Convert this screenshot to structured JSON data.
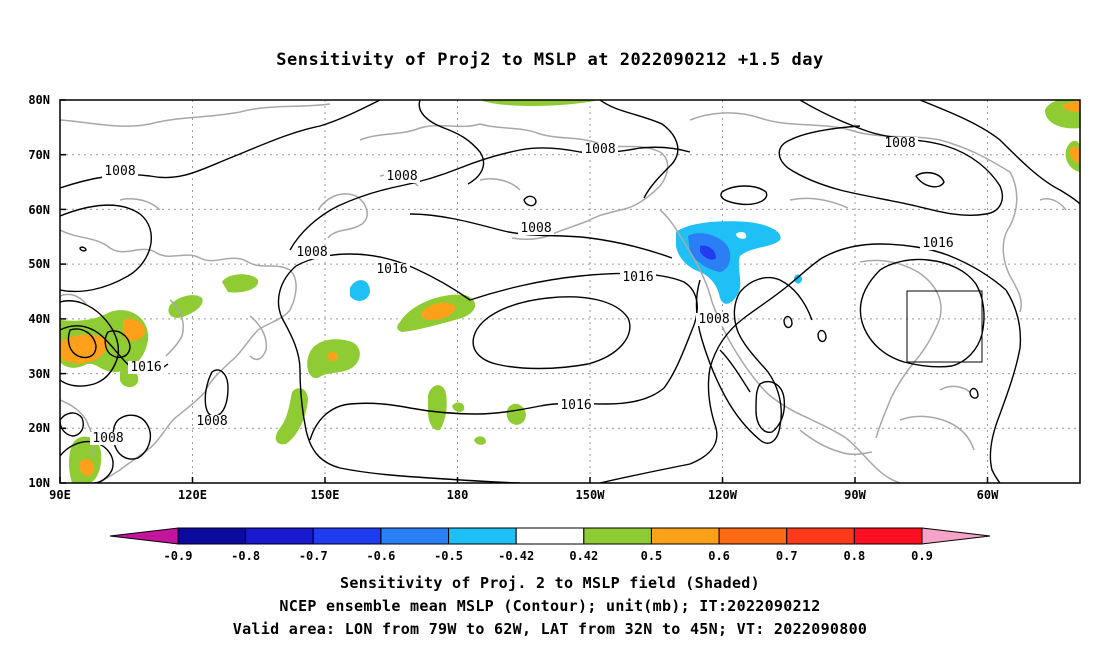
{
  "title": "Sensitivity of Proj2 to MSLP at 2022090212 +1.5 day",
  "lat_labels": [
    "80N",
    "70N",
    "60N",
    "50N",
    "40N",
    "30N",
    "20N",
    "10N"
  ],
  "lon_labels": [
    "90E",
    "120E",
    "150E",
    "180",
    "150W",
    "120W",
    "90W",
    "60W"
  ],
  "contour_labels": [
    {
      "text": "1008",
      "region": "north-atlantic-arctic"
    },
    {
      "text": "1008",
      "region": "north-pacific-arctic"
    },
    {
      "text": "1008",
      "region": "bering"
    },
    {
      "text": "1008",
      "region": "west-siberia"
    },
    {
      "text": "1008",
      "region": "gulf-of-alaska"
    },
    {
      "text": "1008",
      "region": "kamchatka"
    },
    {
      "text": "1016",
      "region": "north-pacific-high"
    },
    {
      "text": "1016",
      "region": "east-pacific-high"
    },
    {
      "text": "1016",
      "region": "atlantic-high"
    },
    {
      "text": "1008",
      "region": "california-low"
    },
    {
      "text": "1016",
      "region": "china"
    },
    {
      "text": "1016",
      "region": "subtropical-pacific"
    },
    {
      "text": "1008",
      "region": "philippine-sea"
    },
    {
      "text": "1008",
      "region": "bay-of-bengal"
    }
  ],
  "colorbar": {
    "labels": [
      "-0.9",
      "-0.8",
      "-0.7",
      "-0.6",
      "-0.5",
      "-0.42",
      "0.42",
      "0.5",
      "0.6",
      "0.7",
      "0.8",
      "0.9"
    ],
    "colors": [
      "#0a0a9e",
      "#1a1ad0",
      "#1f3cf0",
      "#2a7ff5",
      "#1ec0f5",
      "#ffffff",
      "#8fcb32",
      "#ffa01a",
      "#ff6a14",
      "#ff3a1a",
      "#ff0f1f"
    ],
    "left_triangle_color": "#c4139c",
    "right_triangle_color": "#f5a3c9"
  },
  "footer": {
    "line1": "Sensitivity of Proj. 2 to MSLP field (Shaded)",
    "line2": "NCEP ensemble mean MSLP (Contour); unit(mb); IT:2022090212",
    "line3": "Valid area: LON from 79W to 62W, LAT from 32N to 45N; VT: 2022090800"
  },
  "valid_area": {
    "lon": [
      -79,
      -62
    ],
    "lat": [
      32,
      45
    ]
  }
}
